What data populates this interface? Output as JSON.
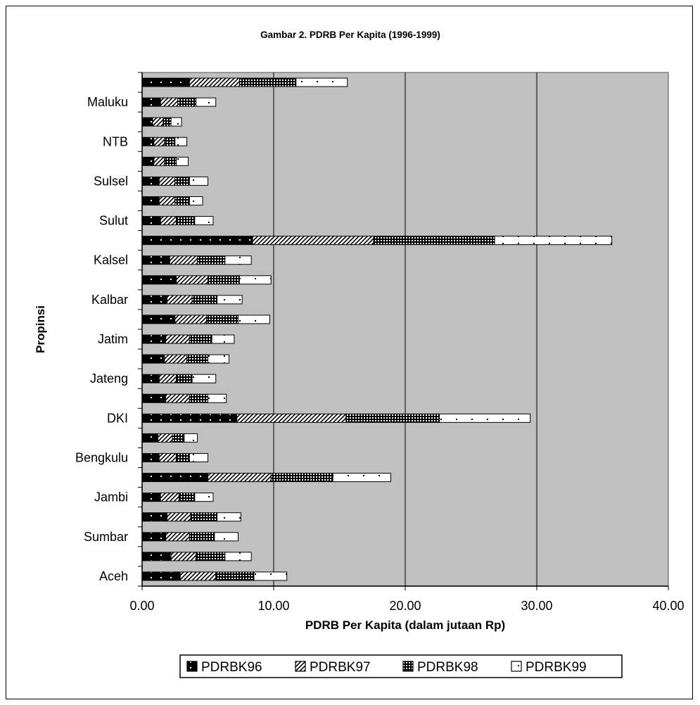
{
  "chart_data": {
    "type": "bar",
    "orientation": "horizontal",
    "stacked": true,
    "title": "Gambar 2. PDRB Per Kapita (1996-1999)",
    "xlabel": "PDRB Per Kapita (dalam jutaan Rp)",
    "ylabel": "Propinsi",
    "xlim": [
      0,
      40
    ],
    "xticks": [
      "0.00",
      "10.00",
      "20.00",
      "30.00",
      "40.00"
    ],
    "yticks_labeled": [
      "Aceh",
      "Sumbar",
      "Jambi",
      "Bengkulu",
      "DKI",
      "Jateng",
      "Jatim",
      "Kalbar",
      "Kalsel",
      "Sulut",
      "Sulsel",
      "NTB",
      "Maluku"
    ],
    "categories": [
      "Aceh",
      "",
      "Sumbar",
      "",
      "Jambi",
      "",
      "Bengkulu",
      "",
      "DKI",
      "",
      "Jateng",
      "",
      "Jatim",
      "",
      "Kalbar",
      "",
      "Kalsel",
      "",
      "Sulut",
      "",
      "Sulsel",
      "",
      "NTB",
      "",
      "Maluku",
      ""
    ],
    "series": [
      {
        "name": "PDRBK96",
        "values": [
          2.9,
          2.2,
          1.8,
          1.9,
          1.4,
          5.0,
          1.3,
          1.2,
          7.2,
          1.8,
          1.3,
          1.7,
          1.8,
          2.5,
          1.9,
          2.6,
          2.1,
          8.4,
          1.4,
          1.3,
          1.3,
          0.9,
          0.9,
          0.8,
          1.4,
          3.6
        ]
      },
      {
        "name": "PDRBK97",
        "values": [
          2.7,
          1.9,
          1.8,
          1.8,
          1.4,
          4.8,
          1.3,
          1.1,
          8.3,
          1.8,
          1.3,
          1.7,
          1.8,
          2.4,
          1.9,
          2.4,
          2.1,
          9.2,
          1.2,
          1.2,
          1.2,
          0.8,
          0.8,
          0.8,
          1.3,
          3.8
        ]
      },
      {
        "name": "PDRBK98",
        "values": [
          2.9,
          2.2,
          1.9,
          2.0,
          1.2,
          4.7,
          1.0,
          0.9,
          7.1,
          1.4,
          1.2,
          1.6,
          1.7,
          2.4,
          1.9,
          2.4,
          2.1,
          9.2,
          1.4,
          1.1,
          1.1,
          0.9,
          0.8,
          0.6,
          1.4,
          4.3
        ]
      },
      {
        "name": "PDRBK99",
        "values": [
          2.5,
          2.0,
          1.8,
          1.8,
          1.4,
          4.4,
          1.4,
          1.0,
          6.9,
          1.4,
          1.8,
          1.6,
          1.7,
          2.4,
          1.9,
          2.4,
          2.0,
          8.9,
          1.4,
          1.0,
          1.4,
          0.9,
          0.9,
          0.8,
          1.5,
          3.9
        ]
      }
    ],
    "grid": "vertical",
    "legend": "bottom",
    "plot_background": "#c0c0c0"
  }
}
